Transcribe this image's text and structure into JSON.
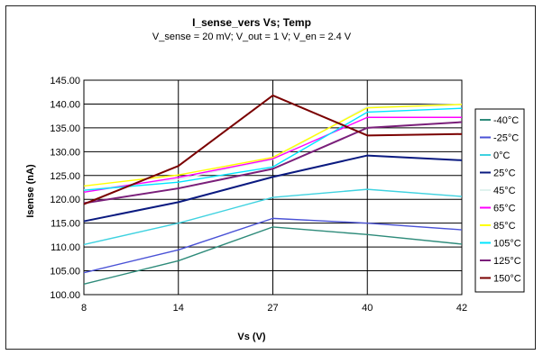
{
  "chart_data": {
    "type": "line",
    "title": "I_sense_vers Vs; Temp",
    "subtitle": "V_sense = 20 mV; V_out = 1 V; V_en = 2.4 V",
    "xlabel": "Vs (V)",
    "ylabel": "Isense (nA)",
    "categories": [
      "8",
      "14",
      "27",
      "40",
      "42"
    ],
    "ylim": [
      100,
      145
    ],
    "yticks": [
      "100.00",
      "105.00",
      "110.00",
      "115.00",
      "120.00",
      "125.00",
      "130.00",
      "135.00",
      "140.00",
      "145.00"
    ],
    "grid": true,
    "legend_position": "right",
    "series": [
      {
        "name": "-40°C",
        "color": "#2e8b7a",
        "values": [
          102.2,
          107.1,
          114.2,
          112.6,
          110.6
        ]
      },
      {
        "name": "-25°C",
        "color": "#4a52d6",
        "values": [
          104.6,
          109.4,
          116.0,
          115.0,
          113.6
        ]
      },
      {
        "name": "0°C",
        "color": "#3fd2e0",
        "values": [
          110.5,
          115.0,
          120.4,
          122.1,
          120.6
        ]
      },
      {
        "name": "25°C",
        "color": "#0a1a80",
        "values": [
          115.4,
          119.4,
          124.7,
          129.2,
          128.2
        ]
      },
      {
        "name": "45°C",
        "color": "#dff2ee",
        "values": [
          122.0,
          124.2,
          128.4,
          139.5,
          140.0
        ]
      },
      {
        "name": "65°C",
        "color": "#ff00ff",
        "values": [
          121.5,
          124.6,
          128.5,
          137.2,
          137.2
        ]
      },
      {
        "name": "85°C",
        "color": "#ffff00",
        "values": [
          122.8,
          125.1,
          128.8,
          139.2,
          139.9
        ]
      },
      {
        "name": "105°C",
        "color": "#00e5ff",
        "values": [
          121.9,
          123.6,
          126.8,
          138.3,
          139.1
        ]
      },
      {
        "name": "125°C",
        "color": "#7a1f7a",
        "values": [
          119.2,
          122.3,
          126.4,
          135.0,
          136.2
        ]
      },
      {
        "name": "150°C",
        "color": "#7a0000",
        "values": [
          119.0,
          127.0,
          141.8,
          133.4,
          133.7
        ]
      }
    ]
  }
}
